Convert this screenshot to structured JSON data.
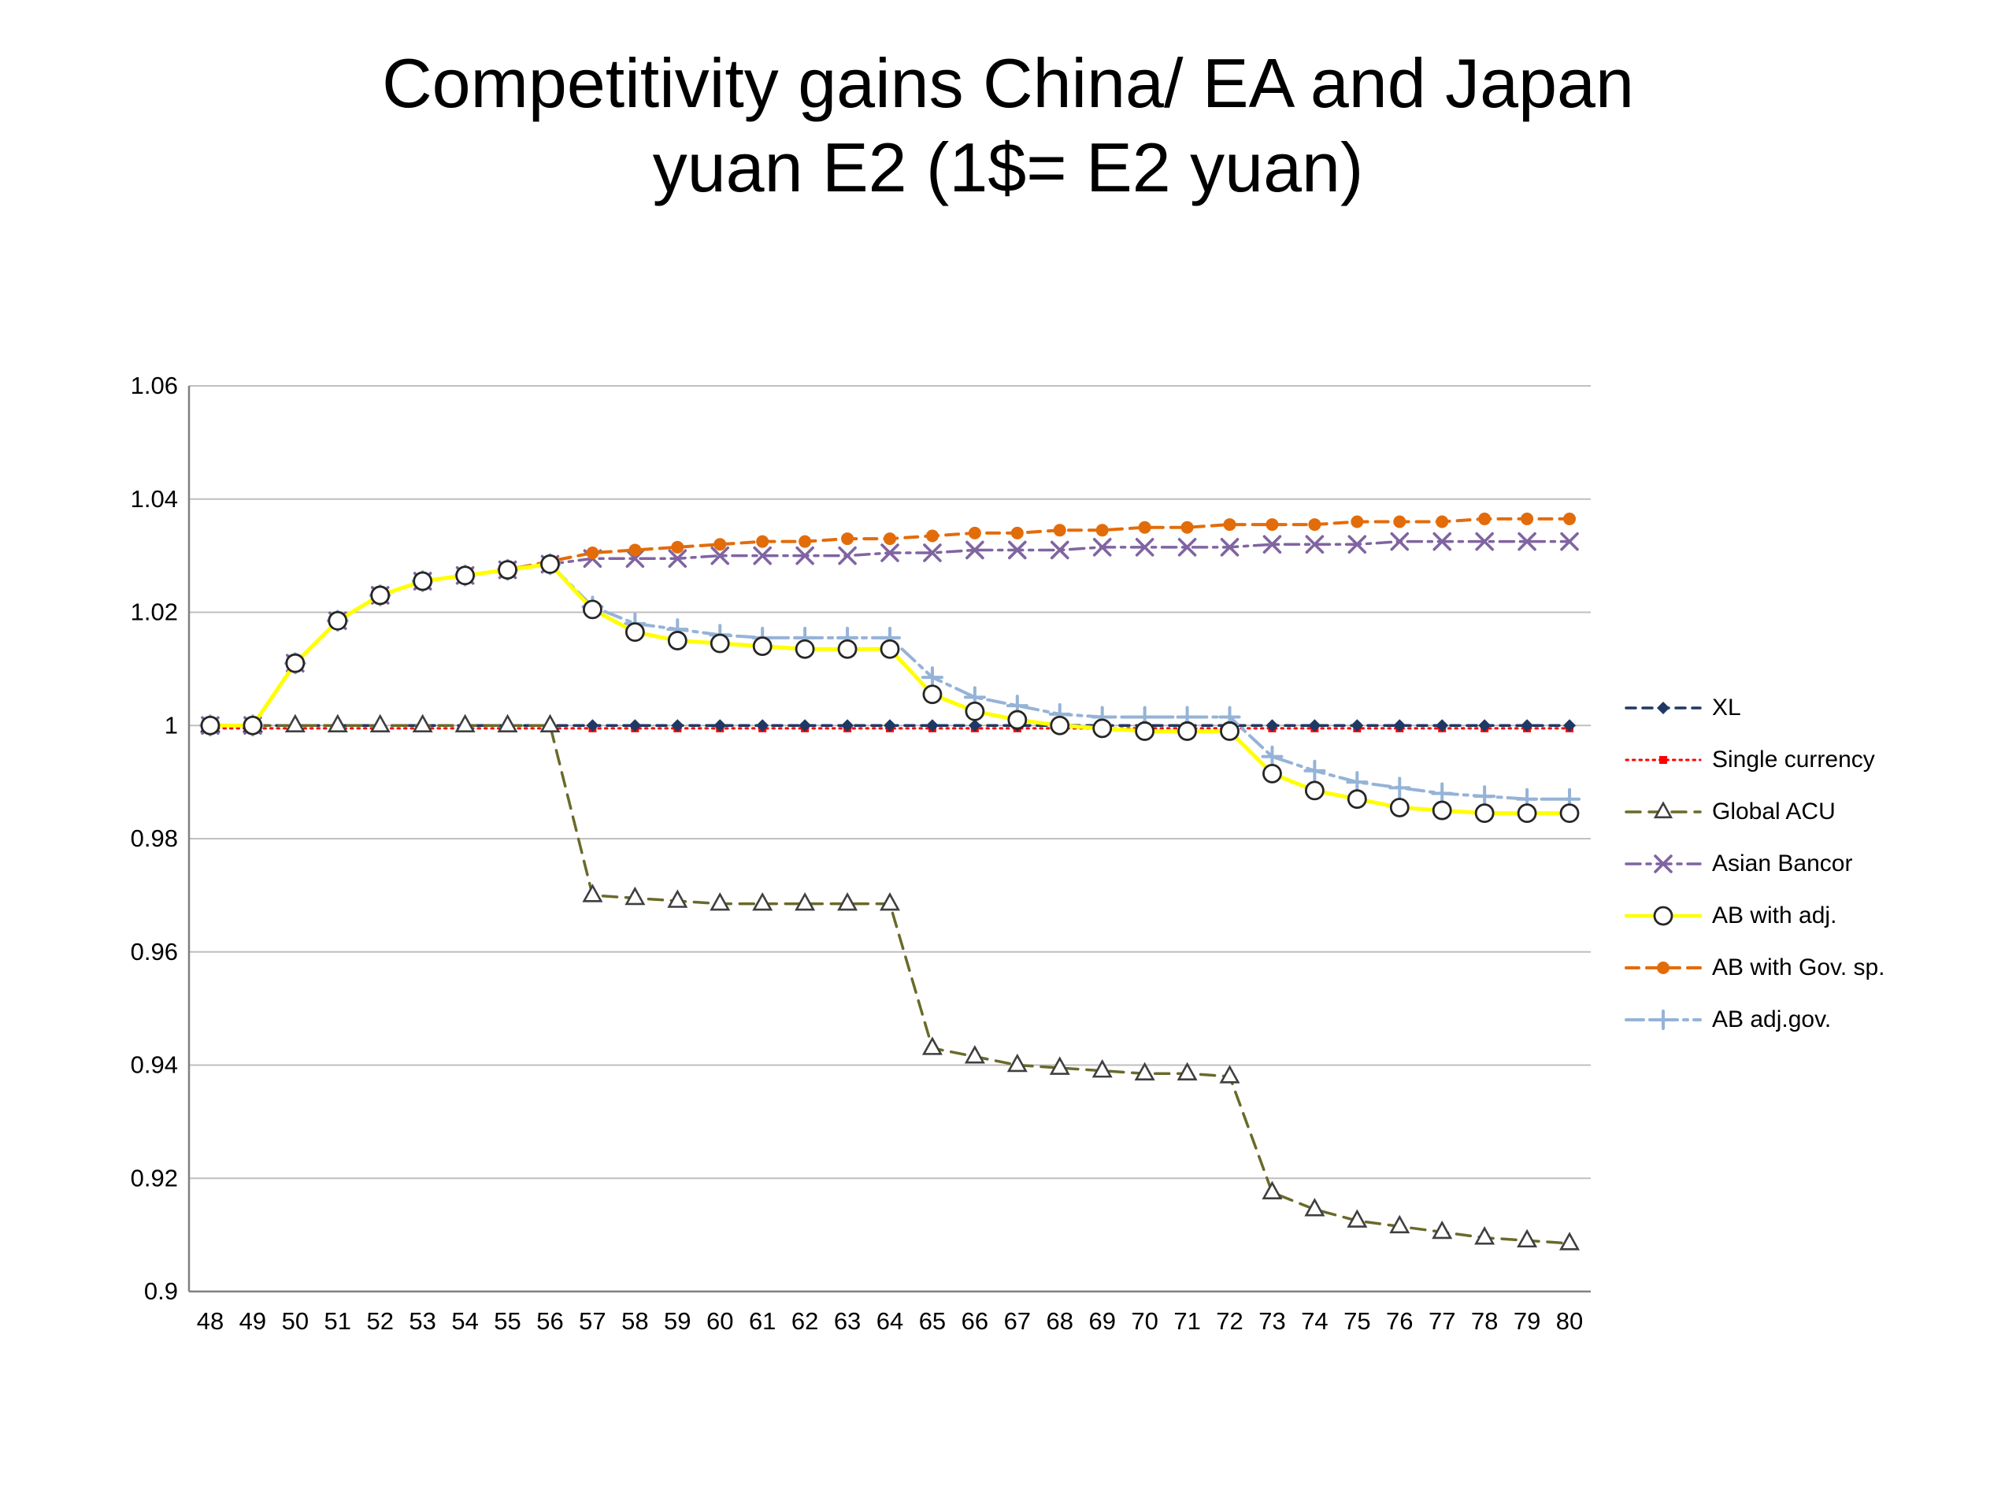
{
  "title_lines": [
    "Competitivity gains China/ EA and Japan",
    "yuan E2 (1$= E2 yuan)"
  ],
  "chart_data": {
    "type": "line",
    "title": "Competitivity gains China/ EA and Japan yuan E2 (1$= E2 yuan)",
    "xlabel": "",
    "ylabel": "",
    "grid": true,
    "legend_position": "right",
    "ylim": [
      0.9,
      1.06
    ],
    "yticks": [
      "0.9",
      "0.92",
      "0.94",
      "0.96",
      "0.98",
      "1",
      "1.02",
      "1.04",
      "1.06"
    ],
    "categories": [
      48,
      49,
      50,
      51,
      52,
      53,
      54,
      55,
      56,
      57,
      58,
      59,
      60,
      61,
      62,
      63,
      64,
      65,
      66,
      67,
      68,
      69,
      70,
      71,
      72,
      73,
      74,
      75,
      76,
      77,
      78,
      79,
      80
    ],
    "series": [
      {
        "name": "XL",
        "color": "#1F3864",
        "dash": "12,9",
        "marker": "diamond",
        "width": 3.5,
        "msize": 8,
        "values": [
          1.0,
          1.0,
          1.0,
          1.0,
          1.0,
          1.0,
          1.0,
          1.0,
          1.0,
          1.0,
          1.0,
          1.0,
          1.0,
          1.0,
          1.0,
          1.0,
          1.0,
          1.0,
          1.0,
          1.0,
          1.0,
          1.0,
          1.0,
          1.0,
          1.0,
          1.0,
          1.0,
          1.0,
          1.0,
          1.0,
          1.0,
          1.0,
          1.0
        ]
      },
      {
        "name": "Single currency",
        "color": "#FF0000",
        "dash": "2.5,6",
        "marker": "square",
        "width": 3,
        "msize": 5,
        "values": [
          0.9995,
          0.9995,
          0.9995,
          0.9995,
          0.9995,
          0.9995,
          0.9995,
          0.9995,
          0.9995,
          0.9995,
          0.9995,
          0.9995,
          0.9995,
          0.9995,
          0.9995,
          0.9995,
          0.9995,
          0.9995,
          0.9995,
          0.9995,
          0.9995,
          0.9995,
          0.9995,
          0.9995,
          0.9995,
          0.9995,
          0.9995,
          0.9995,
          0.9995,
          0.9995,
          0.9995,
          0.9995,
          0.9995
        ]
      },
      {
        "name": "Global ACU",
        "color": "#6A6A2A",
        "dash": "18,11",
        "marker": "triangle",
        "width": 3.5,
        "msize": 12,
        "values": [
          1.0,
          1.0,
          1.0,
          1.0,
          1.0,
          1.0,
          1.0,
          1.0,
          1.0,
          0.97,
          0.9695,
          0.969,
          0.9685,
          0.9685,
          0.9685,
          0.9685,
          0.9685,
          0.943,
          0.9415,
          0.94,
          0.9395,
          0.939,
          0.9385,
          0.9385,
          0.938,
          0.9175,
          0.9145,
          0.9125,
          0.9115,
          0.9105,
          0.9095,
          0.909,
          0.9085
        ]
      },
      {
        "name": "Asian Bancor",
        "color": "#8064A2",
        "dash": "18,8,5,8",
        "marker": "x",
        "width": 3.5,
        "msize": 10,
        "values": [
          1.0,
          1.0,
          1.011,
          1.0185,
          1.023,
          1.0255,
          1.0265,
          1.0275,
          1.0285,
          1.0295,
          1.0295,
          1.0295,
          1.03,
          1.03,
          1.03,
          1.03,
          1.0305,
          1.0305,
          1.031,
          1.031,
          1.031,
          1.0315,
          1.0315,
          1.0315,
          1.0315,
          1.032,
          1.032,
          1.032,
          1.0325,
          1.0325,
          1.0325,
          1.0325,
          1.0325
        ]
      },
      {
        "name": "AB with adj.",
        "color": "#FFFF00",
        "dash": "",
        "marker": "circle-open",
        "width": 5,
        "msize": 11,
        "values": [
          1.0,
          1.0,
          1.011,
          1.0185,
          1.023,
          1.0255,
          1.0265,
          1.0275,
          1.0285,
          1.0205,
          1.0165,
          1.015,
          1.0145,
          1.014,
          1.0135,
          1.0135,
          1.0135,
          1.0055,
          1.0025,
          1.001,
          1.0,
          0.9995,
          0.999,
          0.999,
          0.999,
          0.9915,
          0.9885,
          0.987,
          0.9855,
          0.985,
          0.9845,
          0.9845,
          0.9845
        ]
      },
      {
        "name": "AB with Gov. sp.",
        "color": "#E36C0A",
        "dash": "16,10",
        "marker": "circle",
        "width": 4,
        "msize": 8,
        "values": [
          1.0,
          1.0,
          1.011,
          1.0185,
          1.023,
          1.0255,
          1.0265,
          1.0275,
          1.029,
          1.0305,
          1.031,
          1.0315,
          1.032,
          1.0325,
          1.0325,
          1.033,
          1.033,
          1.0335,
          1.034,
          1.034,
          1.0345,
          1.0345,
          1.035,
          1.035,
          1.0355,
          1.0355,
          1.0355,
          1.036,
          1.036,
          1.036,
          1.0365,
          1.0365,
          1.0365
        ]
      },
      {
        "name": "AB adj.gov.",
        "color": "#95B3D7",
        "dash": "22,8,5,8",
        "marker": "plus",
        "width": 4,
        "msize": 12,
        "values": [
          1.0,
          1.0,
          1.011,
          1.0185,
          1.023,
          1.0255,
          1.0265,
          1.0275,
          1.0285,
          1.021,
          1.018,
          1.017,
          1.016,
          1.0155,
          1.0155,
          1.0155,
          1.0155,
          1.0085,
          1.005,
          1.0035,
          1.002,
          1.0015,
          1.0015,
          1.0015,
          1.0015,
          0.9945,
          0.992,
          0.99,
          0.989,
          0.988,
          0.9875,
          0.987,
          0.987
        ]
      }
    ],
    "colors": {
      "gridline": "#BFBFBF",
      "axis": "#808080",
      "tick_text": "#000000"
    }
  }
}
